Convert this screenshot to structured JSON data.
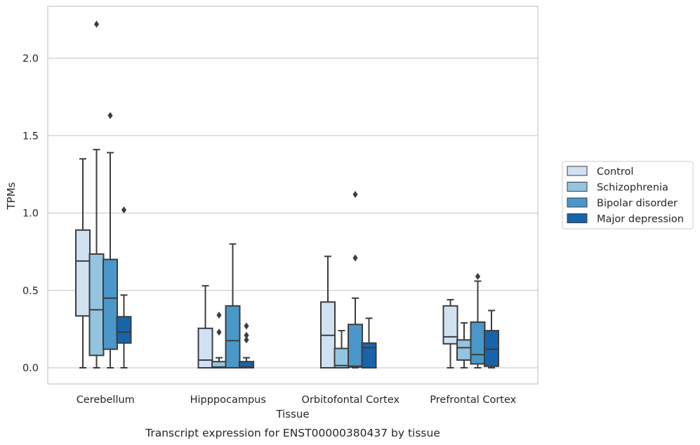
{
  "caption": "Transcript expression for ENST00000380437 by tissue",
  "colors": {
    "Control": "#d0e1f2",
    "Schizophrenia": "#94c4df",
    "Bipolar disorder": "#4a98c9",
    "Major depression": "#1764ab",
    "box_line": "#3d3d3d",
    "grid": "#cfcfcf",
    "frame": "#c8c8c8"
  },
  "chart_data": {
    "type": "box",
    "xlabel": "Tissue",
    "ylabel": "TPMs",
    "ylim": [
      -0.1,
      2.35
    ],
    "yticks": [
      0.0,
      0.5,
      1.0,
      1.5,
      2.0
    ],
    "ytick_labels": [
      "0.0",
      "0.5",
      "1.0",
      "1.5",
      "2.0"
    ],
    "grid": "horizontal",
    "legend_position": "right",
    "categories": [
      "Cerebellum",
      "Hipppocampus",
      "Orbitofontal Cortex",
      "Prefrontal Cortex"
    ],
    "series": [
      {
        "name": "Control",
        "boxes": [
          {
            "whisker_low": 0.0,
            "q1": 0.335,
            "median": 0.69,
            "q3": 0.89,
            "whisker_high": 1.35,
            "outliers": []
          },
          {
            "whisker_low": 0.0,
            "q1": 0.0,
            "median": 0.05,
            "q3": 0.255,
            "whisker_high": 0.53,
            "outliers": []
          },
          {
            "whisker_low": 0.0,
            "q1": 0.0,
            "median": 0.21,
            "q3": 0.425,
            "whisker_high": 0.72,
            "outliers": []
          },
          {
            "whisker_low": 0.0,
            "q1": 0.155,
            "median": 0.2,
            "q3": 0.4,
            "whisker_high": 0.44,
            "outliers": []
          }
        ]
      },
      {
        "name": "Schizophrenia",
        "boxes": [
          {
            "whisker_low": 0.0,
            "q1": 0.08,
            "median": 0.375,
            "q3": 0.735,
            "whisker_high": 1.41,
            "outliers": [
              2.22
            ]
          },
          {
            "whisker_low": 0.0,
            "q1": 0.0,
            "median": 0.005,
            "q3": 0.04,
            "whisker_high": 0.065,
            "outliers": [
              0.23,
              0.34
            ]
          },
          {
            "whisker_low": 0.0,
            "q1": 0.0,
            "median": 0.015,
            "q3": 0.125,
            "whisker_high": 0.24,
            "outliers": []
          },
          {
            "whisker_low": 0.0,
            "q1": 0.05,
            "median": 0.13,
            "q3": 0.18,
            "whisker_high": 0.29,
            "outliers": []
          }
        ]
      },
      {
        "name": "Bipolar disorder",
        "boxes": [
          {
            "whisker_low": 0.0,
            "q1": 0.12,
            "median": 0.45,
            "q3": 0.7,
            "whisker_high": 1.39,
            "outliers": [
              1.63
            ]
          },
          {
            "whisker_low": 0.0,
            "q1": 0.0,
            "median": 0.175,
            "q3": 0.4,
            "whisker_high": 0.8,
            "outliers": []
          },
          {
            "whisker_low": 0.0,
            "q1": 0.005,
            "median": 0.01,
            "q3": 0.28,
            "whisker_high": 0.45,
            "outliers": [
              0.71,
              1.12
            ]
          },
          {
            "whisker_low": 0.0,
            "q1": 0.025,
            "median": 0.085,
            "q3": 0.295,
            "whisker_high": 0.56,
            "outliers": [
              0.59
            ]
          }
        ]
      },
      {
        "name": "Major depression",
        "boxes": [
          {
            "whisker_low": 0.0,
            "q1": 0.16,
            "median": 0.23,
            "q3": 0.33,
            "whisker_high": 0.47,
            "outliers": [
              1.02
            ]
          },
          {
            "whisker_low": 0.0,
            "q1": 0.0,
            "median": 0.005,
            "q3": 0.04,
            "whisker_high": 0.065,
            "outliers": [
              0.18,
              0.21,
              0.27
            ]
          },
          {
            "whisker_low": 0.0,
            "q1": 0.0,
            "median": 0.13,
            "q3": 0.16,
            "whisker_high": 0.32,
            "outliers": []
          },
          {
            "whisker_low": 0.0,
            "q1": 0.01,
            "median": 0.12,
            "q3": 0.24,
            "whisker_high": 0.37,
            "outliers": []
          }
        ]
      }
    ]
  }
}
